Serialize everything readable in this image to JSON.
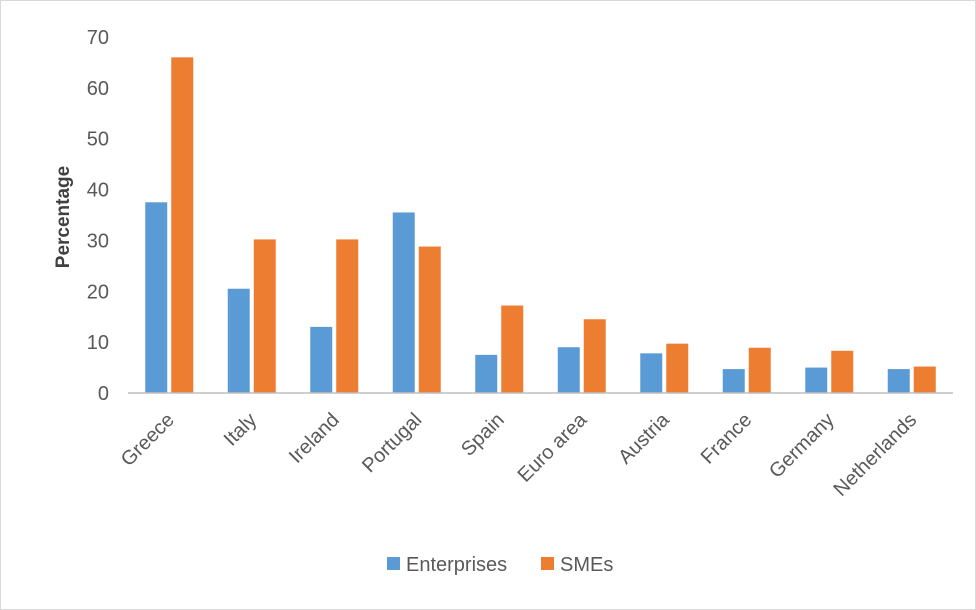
{
  "chart_data": {
    "type": "bar",
    "categories": [
      "Greece",
      "Italy",
      "Ireland",
      "Portugal",
      "Spain",
      "Euro area",
      "Austria",
      "France",
      "Germany",
      "Netherlands"
    ],
    "series": [
      {
        "name": "Enterprises",
        "color": "#5b9bd5",
        "values": [
          37.5,
          20.5,
          13,
          35.5,
          7.5,
          9,
          7.8,
          4.7,
          5,
          4.7
        ]
      },
      {
        "name": "SMEs",
        "color": "#ed7d31",
        "values": [
          66,
          30.2,
          30.2,
          28.8,
          17.2,
          14.5,
          9.7,
          8.9,
          8.3,
          5.2
        ]
      }
    ],
    "title": "",
    "xlabel": "",
    "ylabel": "Percentage",
    "ylim": [
      0,
      70
    ],
    "yticks": [
      "0",
      "10",
      "20",
      "30",
      "40",
      "50",
      "60",
      "70"
    ],
    "grid": false,
    "legend_position": "bottom"
  }
}
